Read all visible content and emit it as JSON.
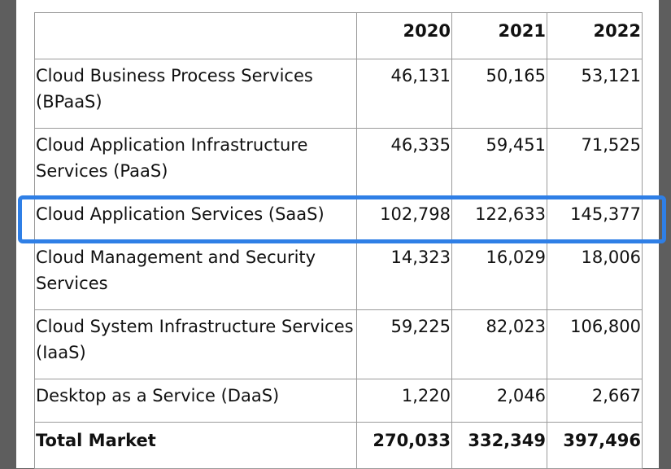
{
  "table": {
    "columns": [
      "2020",
      "2021",
      "2022"
    ],
    "rows": [
      {
        "label": "Cloud Business Process Services (BPaaS)",
        "values": [
          "46,131",
          "50,165",
          "53,121"
        ]
      },
      {
        "label": "Cloud Application Infrastructure Services (PaaS)",
        "values": [
          "46,335",
          "59,451",
          "71,525"
        ]
      },
      {
        "label": "Cloud Application Services (SaaS)",
        "values": [
          "102,798",
          "122,633",
          "145,377"
        ],
        "highlighted": true
      },
      {
        "label": "Cloud Management and Security Services",
        "values": [
          "14,323",
          "16,029",
          "18,006"
        ]
      },
      {
        "label": "Cloud System Infrastructure Services (IaaS)",
        "values": [
          "59,225",
          "82,023",
          "106,800"
        ]
      },
      {
        "label": "Desktop as a Service (DaaS)",
        "values": [
          "1,220",
          "2,046",
          "2,667"
        ]
      }
    ],
    "total": {
      "label": "Total Market",
      "values": [
        "270,033",
        "332,349",
        "397,496"
      ]
    }
  }
}
